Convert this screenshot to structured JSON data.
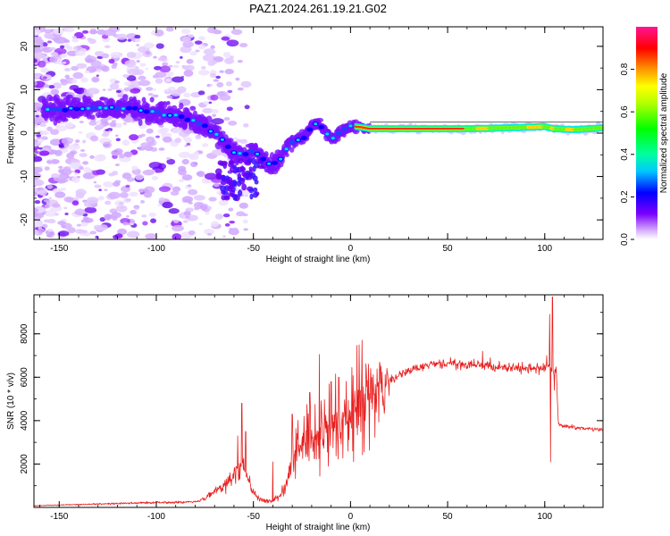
{
  "figure": {
    "title": "PAZ1.2024.261.19.21.G02"
  },
  "chart_data": [
    {
      "type": "heatmap",
      "xlabel": "Height of straight line (km)",
      "ylabel": "Frequency (Hz)",
      "xlim": [
        -163,
        130
      ],
      "ylim": [
        -24.5,
        24.5
      ],
      "xticks": [
        -150,
        -100,
        -50,
        0,
        50,
        100
      ],
      "yticks": [
        -20,
        -10,
        0,
        10,
        20
      ],
      "colorbar": {
        "label": "Normalized spectral amplitude",
        "ticks": [
          0.0,
          0.2,
          0.4,
          0.6,
          0.8
        ],
        "range": [
          0,
          1
        ]
      },
      "ridge": [
        [
          -158,
          5.5
        ],
        [
          -140,
          5.5
        ],
        [
          -130,
          5.8
        ],
        [
          -120,
          5.8
        ],
        [
          -110,
          5.5
        ],
        [
          -100,
          4.8
        ],
        [
          -90,
          4.0
        ],
        [
          -80,
          2.8
        ],
        [
          -75,
          1.5
        ],
        [
          -70,
          0.0
        ],
        [
          -65,
          -2.0
        ],
        [
          -60,
          -4.5
        ],
        [
          -55,
          -5.0
        ],
        [
          -50,
          -4.0
        ],
        [
          -46,
          -5.5
        ],
        [
          -42,
          -7.0
        ],
        [
          -38,
          -7.0
        ],
        [
          -35,
          -5.5
        ],
        [
          -32,
          -2.5
        ],
        [
          -28,
          -1.8
        ],
        [
          -24,
          -0.8
        ],
        [
          -20,
          1.5
        ],
        [
          -17,
          2.5
        ],
        [
          -14,
          0.8
        ],
        [
          -11,
          -0.5
        ],
        [
          -8,
          -1.2
        ],
        [
          -5,
          0.5
        ],
        [
          -2,
          0.8
        ],
        [
          0,
          1.6
        ],
        [
          5,
          1.4
        ],
        [
          10,
          1.0
        ],
        [
          30,
          1.0
        ],
        [
          60,
          1.0
        ],
        [
          80,
          1.2
        ],
        [
          100,
          1.5
        ],
        [
          105,
          1.0
        ],
        [
          115,
          0.8
        ],
        [
          130,
          1.2
        ]
      ]
    },
    {
      "type": "line",
      "xlabel": "Height of straight line (km)",
      "ylabel": "SNR (10 * v/v)",
      "xlim": [
        -163,
        130
      ],
      "ylim": [
        0,
        9800
      ],
      "xticks": [
        -150,
        -100,
        -50,
        0,
        50,
        100
      ],
      "yticks": [
        2000,
        4000,
        6000,
        8000
      ],
      "series": [
        {
          "color": "#e8201f",
          "envelope": [
            [
              -163,
              80
            ],
            [
              -140,
              130
            ],
            [
              -120,
              180
            ],
            [
              -100,
              230
            ],
            [
              -85,
              240
            ],
            [
              -80,
              280
            ],
            [
              -75,
              400
            ],
            [
              -70,
              750
            ],
            [
              -65,
              1000
            ],
            [
              -60,
              1400
            ],
            [
              -56,
              2000
            ],
            [
              -54,
              1700
            ],
            [
              -50,
              650
            ],
            [
              -45,
              280
            ],
            [
              -40,
              300
            ],
            [
              -36,
              600
            ],
            [
              -33,
              1100
            ],
            [
              -30,
              2000
            ],
            [
              -25,
              2900
            ],
            [
              -20,
              3100
            ],
            [
              -15,
              3200
            ],
            [
              -10,
              3900
            ],
            [
              -5,
              4000
            ],
            [
              0,
              4400
            ],
            [
              5,
              4900
            ],
            [
              10,
              5100
            ],
            [
              15,
              5400
            ],
            [
              20,
              5800
            ],
            [
              25,
              6100
            ],
            [
              30,
              6300
            ],
            [
              40,
              6550
            ],
            [
              50,
              6650
            ],
            [
              60,
              6600
            ],
            [
              70,
              6500
            ],
            [
              80,
              6450
            ],
            [
              90,
              6400
            ],
            [
              98,
              6400
            ],
            [
              102,
              6450
            ],
            [
              104,
              6300
            ],
            [
              106,
              6250
            ],
            [
              107,
              3800
            ],
            [
              110,
              3750
            ],
            [
              120,
              3650
            ],
            [
              130,
              3550
            ]
          ],
          "spikes": [
            [
              -56,
              4800
            ],
            [
              -58,
              3300
            ],
            [
              -54,
              3500
            ],
            [
              -40,
              2100
            ],
            [
              -30,
              4300
            ],
            [
              -24,
              4200
            ],
            [
              -21,
              5300
            ],
            [
              -16,
              7050
            ],
            [
              -10,
              5800
            ],
            [
              -6,
              6000
            ],
            [
              68,
              7200
            ],
            [
              72,
              6900
            ],
            [
              101,
              7000
            ],
            [
              102.5,
              8900
            ],
            [
              103,
              2100
            ],
            [
              104,
              9700
            ],
            [
              105,
              5400
            ]
          ]
        }
      ]
    }
  ]
}
